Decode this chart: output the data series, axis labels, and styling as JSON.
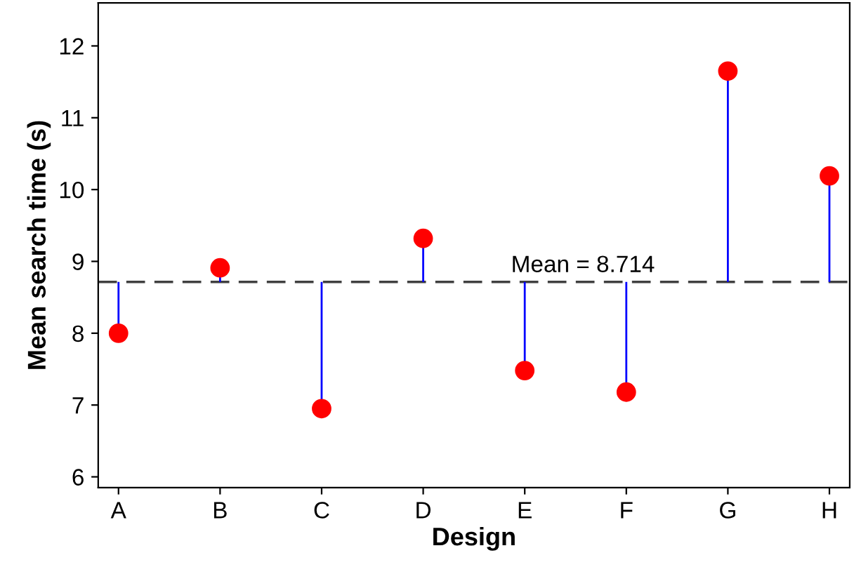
{
  "chart_data": {
    "type": "lollipop",
    "xlabel": "Design",
    "ylabel": "Mean search time (s)",
    "categories": [
      "A",
      "B",
      "C",
      "D",
      "E",
      "F",
      "G",
      "H"
    ],
    "series": [
      {
        "color": "#ff0000",
        "values": [
          8.0,
          8.91,
          6.95,
          9.32,
          7.48,
          7.18,
          11.65,
          10.19
        ],
        "errors": [
          [
            8.0,
            8.714
          ],
          [
            8.714,
            8.91
          ],
          [
            6.95,
            8.714
          ],
          [
            8.714,
            9.32
          ],
          [
            7.48,
            8.714
          ],
          [
            7.18,
            8.714
          ],
          [
            8.714,
            11.65
          ],
          [
            8.714,
            10.19
          ]
        ]
      }
    ],
    "ylim": [
      5.85,
      12.6
    ],
    "yticks": [
      6,
      7,
      8,
      9,
      10,
      11,
      12
    ],
    "ref_lines": [
      {
        "axis": "y",
        "value": 8.714,
        "label": "Mean = 8.714",
        "color": "#404040",
        "line_style": "dashed"
      }
    ],
    "marker": "circle",
    "grid": false,
    "legend": false
  }
}
